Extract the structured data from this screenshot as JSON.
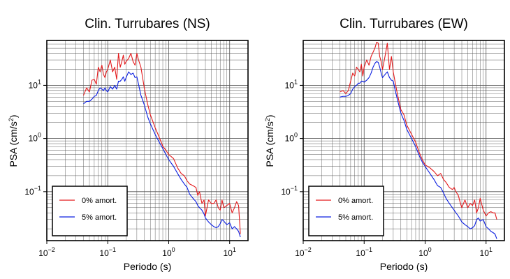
{
  "colors": {
    "undamped": "#e31a1c",
    "damped": "#0b1ee0",
    "grid": "#555555",
    "axis": "#000000"
  },
  "chart_data": [
    {
      "type": "line",
      "title": "Clin. Turrubares (NS)",
      "xlabel": "Periodo (s)",
      "ylabel": "PSA (cm/s²)",
      "xscale": "log",
      "yscale": "log",
      "xlim": [
        0.01,
        20
      ],
      "ylim": [
        0.012,
        70
      ],
      "xticks": [
        {
          "value": 0.01,
          "base": "10",
          "exp": "−2"
        },
        {
          "value": 0.1,
          "base": "10",
          "exp": "−1"
        },
        {
          "value": 1,
          "base": "10",
          "exp": "0"
        },
        {
          "value": 10,
          "base": "10",
          "exp": "1"
        }
      ],
      "yticks": [
        {
          "value": 0.1,
          "base": "10",
          "exp": "−1"
        },
        {
          "value": 1,
          "base": "10",
          "exp": "0"
        },
        {
          "value": 10,
          "base": "10",
          "exp": "1"
        }
      ],
      "grid": true,
      "legend_position": "bottom-left",
      "series": [
        {
          "name": "0% amort.",
          "color": "#e31a1c",
          "x": [
            0.04,
            0.045,
            0.05,
            0.055,
            0.06,
            0.065,
            0.07,
            0.075,
            0.08,
            0.085,
            0.09,
            0.095,
            0.1,
            0.11,
            0.12,
            0.13,
            0.14,
            0.15,
            0.16,
            0.17,
            0.18,
            0.19,
            0.2,
            0.22,
            0.24,
            0.26,
            0.28,
            0.3,
            0.32,
            0.35,
            0.4,
            0.45,
            0.5,
            0.6,
            0.7,
            0.8,
            0.9,
            1.0,
            1.2,
            1.4,
            1.6,
            1.8,
            2.0,
            2.2,
            2.5,
            2.8,
            3.0,
            3.2,
            3.5,
            3.8,
            4.0,
            4.5,
            5.0,
            5.5,
            6.0,
            6.5,
            7.0,
            7.5,
            8.0,
            9.0,
            10.0,
            11.0,
            12.0,
            13.0,
            14.0,
            15.0
          ],
          "y": [
            6.5,
            9.0,
            7.5,
            12.5,
            13.0,
            10.5,
            22.0,
            18.0,
            24.0,
            16.0,
            14.0,
            18.0,
            20.0,
            30.0,
            18.0,
            22.0,
            13.0,
            40.0,
            22.0,
            28.0,
            37.0,
            25.0,
            28.0,
            32.0,
            40.0,
            28.0,
            24.0,
            40.0,
            30.0,
            22.0,
            8.5,
            4.5,
            2.8,
            1.6,
            1.05,
            0.72,
            0.6,
            0.5,
            0.42,
            0.28,
            0.22,
            0.2,
            0.16,
            0.14,
            0.13,
            0.12,
            0.085,
            0.1,
            0.06,
            0.07,
            0.035,
            0.07,
            0.06,
            0.06,
            0.07,
            0.05,
            0.045,
            0.07,
            0.05,
            0.055,
            0.06,
            0.04,
            0.05,
            0.065,
            0.055,
            0.016
          ]
        },
        {
          "name": "5% amort.",
          "color": "#0b1ee0",
          "x": [
            0.04,
            0.045,
            0.05,
            0.055,
            0.06,
            0.065,
            0.07,
            0.075,
            0.08,
            0.085,
            0.09,
            0.095,
            0.1,
            0.11,
            0.12,
            0.13,
            0.14,
            0.15,
            0.16,
            0.17,
            0.18,
            0.19,
            0.2,
            0.22,
            0.24,
            0.26,
            0.28,
            0.3,
            0.32,
            0.35,
            0.4,
            0.45,
            0.5,
            0.6,
            0.7,
            0.8,
            0.9,
            1.0,
            1.2,
            1.4,
            1.6,
            1.8,
            2.0,
            2.2,
            2.5,
            2.8,
            3.0,
            3.2,
            3.5,
            3.8,
            4.0,
            4.5,
            5.0,
            5.5,
            6.0,
            6.5,
            7.0,
            7.5,
            8.0,
            9.0,
            10.0,
            11.0,
            12.0,
            13.0,
            14.0,
            15.0
          ],
          "y": [
            4.5,
            5.0,
            5.0,
            5.5,
            6.2,
            6.5,
            8.0,
            9.0,
            8.5,
            8.0,
            9.0,
            8.0,
            7.5,
            9.5,
            8.5,
            10.0,
            8.5,
            12.0,
            12.0,
            13.0,
            14.5,
            12.0,
            14.0,
            18.0,
            16.0,
            17.0,
            14.0,
            14.5,
            10.5,
            6.5,
            4.2,
            2.6,
            1.9,
            1.2,
            0.85,
            0.65,
            0.5,
            0.4,
            0.3,
            0.22,
            0.17,
            0.14,
            0.12,
            0.09,
            0.075,
            0.065,
            0.055,
            0.05,
            0.045,
            0.038,
            0.032,
            0.027,
            0.024,
            0.022,
            0.021,
            0.022,
            0.025,
            0.03,
            0.028,
            0.024,
            0.026,
            0.02,
            0.022,
            0.02,
            0.018,
            0.014
          ]
        }
      ]
    },
    {
      "type": "line",
      "title": "Clin. Turrubares (EW)",
      "xlabel": "Periodo (s)",
      "ylabel": "PSA (cm/s²)",
      "xscale": "log",
      "yscale": "log",
      "xlim": [
        0.01,
        20
      ],
      "ylim": [
        0.012,
        70
      ],
      "xticks": [
        {
          "value": 0.01,
          "base": "10",
          "exp": "−2"
        },
        {
          "value": 0.1,
          "base": "10",
          "exp": "−1"
        },
        {
          "value": 1,
          "base": "10",
          "exp": "0"
        },
        {
          "value": 10,
          "base": "10",
          "exp": "1"
        }
      ],
      "yticks": [
        {
          "value": 0.1,
          "base": "10",
          "exp": "−1"
        },
        {
          "value": 1,
          "base": "10",
          "exp": "0"
        },
        {
          "value": 10,
          "base": "10",
          "exp": "1"
        }
      ],
      "grid": true,
      "legend_position": "bottom-left",
      "series": [
        {
          "name": "0% amort.",
          "color": "#e31a1c",
          "x": [
            0.04,
            0.045,
            0.05,
            0.055,
            0.06,
            0.065,
            0.07,
            0.075,
            0.08,
            0.085,
            0.09,
            0.095,
            0.1,
            0.11,
            0.12,
            0.13,
            0.14,
            0.15,
            0.16,
            0.17,
            0.18,
            0.19,
            0.2,
            0.22,
            0.24,
            0.26,
            0.28,
            0.3,
            0.32,
            0.35,
            0.4,
            0.45,
            0.5,
            0.6,
            0.7,
            0.8,
            0.9,
            1.0,
            1.2,
            1.4,
            1.6,
            1.8,
            2.0,
            2.2,
            2.5,
            2.8,
            3.0,
            3.2,
            3.5,
            3.8,
            4.0,
            4.5,
            5.0,
            5.5,
            6.0,
            6.5,
            7.0,
            7.5,
            8.0,
            9.0,
            10.0,
            11.0,
            12.0,
            13.0,
            14.0,
            15.0
          ],
          "y": [
            7.5,
            8.0,
            7.0,
            8.0,
            12.0,
            17.0,
            15.0,
            22.0,
            20.0,
            18.0,
            25.0,
            15.0,
            22.0,
            30.0,
            24.0,
            35.0,
            42.0,
            50.0,
            65.0,
            62.0,
            35.0,
            28.0,
            20.0,
            35.0,
            62.0,
            20.0,
            35.0,
            18.0,
            12.0,
            7.0,
            3.5,
            2.8,
            1.8,
            1.2,
            0.85,
            0.55,
            0.4,
            0.32,
            0.28,
            0.24,
            0.2,
            0.22,
            0.17,
            0.15,
            0.12,
            0.11,
            0.12,
            0.1,
            0.085,
            0.06,
            0.05,
            0.07,
            0.05,
            0.06,
            0.055,
            0.07,
            0.04,
            0.05,
            0.075,
            0.045,
            0.035,
            0.04,
            0.042,
            0.04,
            0.04,
            0.03
          ]
        },
        {
          "name": "5% amort.",
          "color": "#0b1ee0",
          "x": [
            0.04,
            0.045,
            0.05,
            0.055,
            0.06,
            0.065,
            0.07,
            0.075,
            0.08,
            0.085,
            0.09,
            0.095,
            0.1,
            0.11,
            0.12,
            0.13,
            0.14,
            0.15,
            0.16,
            0.17,
            0.18,
            0.19,
            0.2,
            0.22,
            0.24,
            0.26,
            0.28,
            0.3,
            0.32,
            0.35,
            0.4,
            0.45,
            0.5,
            0.6,
            0.7,
            0.8,
            0.9,
            1.0,
            1.2,
            1.4,
            1.6,
            1.8,
            2.0,
            2.2,
            2.5,
            2.8,
            3.0,
            3.2,
            3.5,
            3.8,
            4.0,
            4.5,
            5.0,
            5.5,
            6.0,
            6.5,
            7.0,
            7.5,
            8.0,
            9.0,
            10.0,
            11.0,
            12.0,
            13.0,
            14.0,
            15.0
          ],
          "y": [
            6.0,
            6.2,
            6.2,
            6.5,
            7.0,
            8.5,
            9.5,
            10.0,
            11.0,
            11.0,
            12.0,
            12.0,
            11.5,
            12.5,
            14.0,
            17.0,
            22.0,
            26.0,
            28.0,
            27.0,
            22.0,
            17.0,
            14.0,
            16.0,
            18.0,
            14.0,
            12.5,
            12.0,
            8.5,
            5.5,
            3.0,
            2.2,
            1.5,
            1.0,
            0.7,
            0.48,
            0.36,
            0.3,
            0.22,
            0.17,
            0.13,
            0.12,
            0.095,
            0.075,
            0.06,
            0.05,
            0.045,
            0.04,
            0.035,
            0.03,
            0.027,
            0.024,
            0.022,
            0.02,
            0.021,
            0.023,
            0.03,
            0.032,
            0.028,
            0.03,
            0.022,
            0.02,
            0.018,
            0.017,
            0.016,
            0.013
          ]
        }
      ]
    }
  ]
}
